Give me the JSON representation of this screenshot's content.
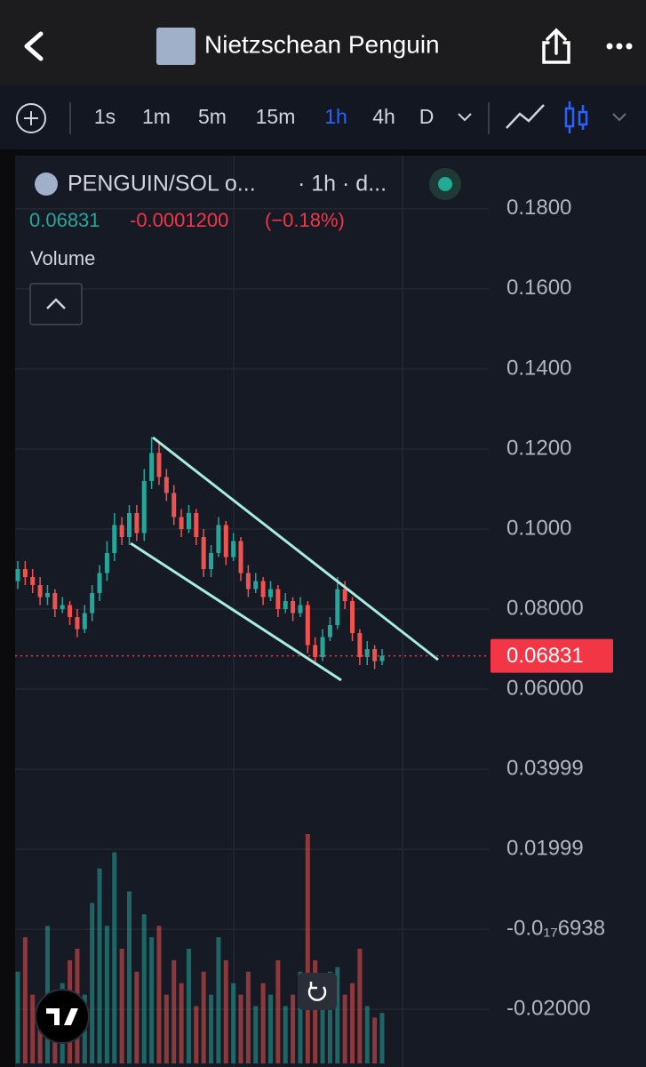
{
  "header": {
    "title": "Nietzschean Penguin"
  },
  "toolbar": {
    "intervals": [
      "1s",
      "1m",
      "5m",
      "15m",
      "1h",
      "4h",
      "D"
    ],
    "active": "1h"
  },
  "chart_data": {
    "type": "candlestick",
    "symbol": "PENGUIN/SOL o...",
    "interval_text": "· 1h · d...",
    "change": "-0.0001200",
    "change_pct": "(−0.18%)",
    "volume_label": "Volume",
    "up_color": "#26a69a",
    "down_color": "#ef5350",
    "grid": true,
    "last_price": 0.06831,
    "open": [
      0.087,
      0.09,
      0.088,
      0.086,
      0.083,
      0.084,
      0.08,
      0.081,
      0.078,
      0.075,
      0.079,
      0.084,
      0.089,
      0.094,
      0.101,
      0.098,
      0.104,
      0.099,
      0.112,
      0.119,
      0.113,
      0.109,
      0.103,
      0.1,
      0.104,
      0.098,
      0.09,
      0.094,
      0.101,
      0.093,
      0.097,
      0.089,
      0.085,
      0.087,
      0.083,
      0.085,
      0.08,
      0.082,
      0.079,
      0.081,
      0.071,
      0.068,
      0.073,
      0.076,
      0.085,
      0.082,
      0.074,
      0.068,
      0.07,
      0.067
    ],
    "high": [
      0.092,
      0.092,
      0.09,
      0.088,
      0.086,
      0.085,
      0.083,
      0.082,
      0.08,
      0.081,
      0.086,
      0.091,
      0.097,
      0.104,
      0.103,
      0.106,
      0.106,
      0.115,
      0.123,
      0.122,
      0.115,
      0.111,
      0.105,
      0.106,
      0.105,
      0.1,
      0.096,
      0.103,
      0.102,
      0.099,
      0.098,
      0.091,
      0.089,
      0.088,
      0.087,
      0.086,
      0.084,
      0.083,
      0.083,
      0.082,
      0.073,
      0.075,
      0.078,
      0.088,
      0.087,
      0.083,
      0.075,
      0.072,
      0.071,
      0.07
    ],
    "low": [
      0.085,
      0.086,
      0.084,
      0.081,
      0.081,
      0.078,
      0.079,
      0.076,
      0.073,
      0.074,
      0.077,
      0.082,
      0.087,
      0.092,
      0.096,
      0.096,
      0.097,
      0.097,
      0.11,
      0.111,
      0.107,
      0.101,
      0.098,
      0.099,
      0.096,
      0.088,
      0.088,
      0.093,
      0.091,
      0.092,
      0.087,
      0.083,
      0.084,
      0.081,
      0.082,
      0.078,
      0.079,
      0.077,
      0.078,
      0.069,
      0.066,
      0.067,
      0.072,
      0.075,
      0.08,
      0.072,
      0.066,
      0.066,
      0.065,
      0.066
    ],
    "close": [
      0.09,
      0.088,
      0.086,
      0.083,
      0.084,
      0.08,
      0.081,
      0.078,
      0.075,
      0.079,
      0.084,
      0.089,
      0.094,
      0.101,
      0.098,
      0.104,
      0.099,
      0.112,
      0.119,
      0.113,
      0.109,
      0.103,
      0.1,
      0.104,
      0.098,
      0.09,
      0.094,
      0.101,
      0.093,
      0.097,
      0.089,
      0.085,
      0.087,
      0.083,
      0.085,
      0.08,
      0.082,
      0.079,
      0.081,
      0.071,
      0.068,
      0.073,
      0.076,
      0.085,
      0.082,
      0.074,
      0.068,
      0.07,
      0.067,
      0.06831
    ],
    "volume": [
      40,
      55,
      30,
      25,
      60,
      20,
      35,
      45,
      50,
      30,
      70,
      85,
      60,
      92,
      50,
      75,
      40,
      65,
      55,
      60,
      30,
      45,
      35,
      50,
      25,
      40,
      30,
      55,
      45,
      35,
      30,
      40,
      25,
      35,
      30,
      45,
      25,
      30,
      40,
      100,
      45,
      35,
      40,
      42,
      30,
      35,
      50,
      25,
      20,
      22
    ],
    "ylim": [
      -0.0344,
      0.1933
    ],
    "yticks": [
      {
        "value": 0.18,
        "label": "0.1800"
      },
      {
        "value": 0.16,
        "label": "0.1600"
      },
      {
        "value": 0.14,
        "label": "0.1400"
      },
      {
        "value": 0.12,
        "label": "0.1200"
      },
      {
        "value": 0.1,
        "label": "0.1000"
      },
      {
        "value": 0.08,
        "label": "0.08000"
      },
      {
        "value": 0.06,
        "label": "0.06000"
      },
      0.03999,
      0.01999,
      {
        "value": -6.938e-18,
        "label": "-0.0₁₇6938"
      },
      {
        "value": -0.02,
        "label": "-0.02000"
      }
    ]
  }
}
